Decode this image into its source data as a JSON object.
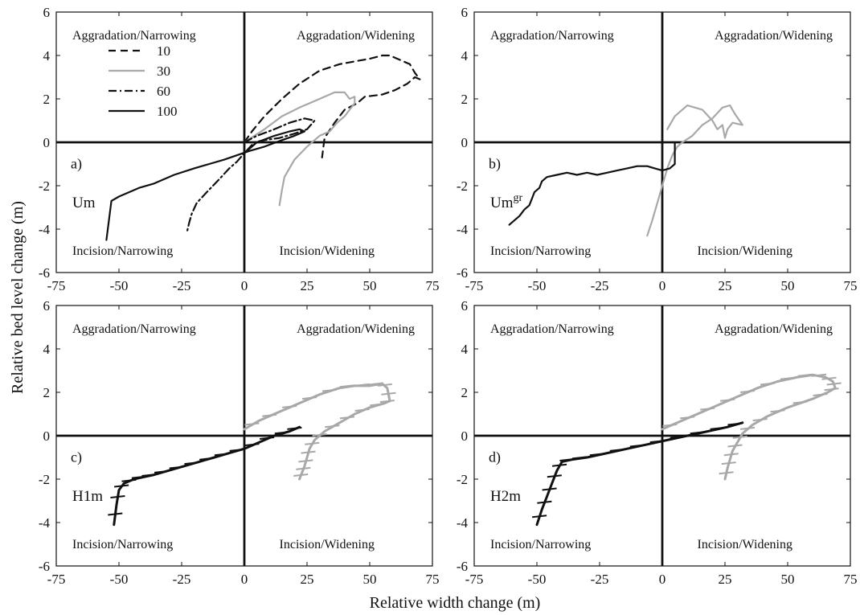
{
  "figure": {
    "xlabel": "Relative width change (m)",
    "ylabel": "Relative bed level change (m)"
  },
  "colors": {
    "black": "#111111",
    "gray": "#a8a8a8"
  },
  "chart_data": [
    {
      "type": "line",
      "panel_letter": "a)",
      "run_name": "Um",
      "run_superscript": "",
      "xlim": [
        -75,
        75
      ],
      "ylim": [
        -6,
        6
      ],
      "xticks": [
        "-75",
        "-50",
        "-25",
        "0",
        "25",
        "50",
        "75"
      ],
      "yticks": [
        "-6",
        "-4",
        "-2",
        "0",
        "2",
        "4",
        "6"
      ],
      "quadrant_labels": {
        "top_left": "Aggradation/Narrowing",
        "top_right": "Aggradation/Widening",
        "bottom_left": "Incision/Narrowing",
        "bottom_right": "Incision/Widening"
      },
      "legend": {
        "position": "upper-left",
        "entries": [
          {
            "label": "10",
            "style": "dashed",
            "color": "#111111"
          },
          {
            "label": "30",
            "style": "solid",
            "color": "#a8a8a8"
          },
          {
            "label": "60",
            "style": "dashdot",
            "color": "#111111"
          },
          {
            "label": "100",
            "style": "solid",
            "color": "#111111"
          }
        ]
      },
      "series": [
        {
          "name": "10",
          "style": "dashed",
          "color": "#111111",
          "x": [
            0,
            3,
            8,
            15,
            22,
            30,
            38,
            45,
            50,
            55,
            58,
            62,
            66,
            68,
            70,
            68,
            65,
            60,
            55,
            48,
            45,
            40,
            36,
            32,
            31
          ],
          "y": [
            0,
            0.5,
            1.2,
            2.0,
            2.7,
            3.3,
            3.6,
            3.75,
            3.85,
            4.0,
            4.0,
            3.8,
            3.6,
            3.2,
            2.9,
            3.0,
            2.7,
            2.4,
            2.2,
            2.1,
            1.8,
            1.5,
            0.9,
            0.2,
            -0.7
          ]
        },
        {
          "name": "30",
          "style": "solid",
          "color": "#a8a8a8",
          "x": [
            0,
            8,
            15,
            22,
            30,
            36,
            40,
            42,
            44,
            44,
            42,
            40,
            37,
            34,
            30,
            25,
            20,
            16,
            15,
            14
          ],
          "y": [
            0,
            0.6,
            1.2,
            1.6,
            2.0,
            2.3,
            2.3,
            2.0,
            2.1,
            1.8,
            1.5,
            1.2,
            0.9,
            0.5,
            0.3,
            -0.2,
            -0.8,
            -1.6,
            -2.2,
            -2.9
          ]
        },
        {
          "name": "60",
          "style": "dashdot",
          "color": "#111111",
          "x": [
            0,
            5,
            12,
            18,
            24,
            28,
            25,
            20,
            14,
            8,
            4,
            0,
            -3,
            -6,
            -10,
            -15,
            -19,
            -21,
            -22,
            -23
          ],
          "y": [
            0,
            0.3,
            0.6,
            0.9,
            1.1,
            1.0,
            0.6,
            0.4,
            0.2,
            0.1,
            0.0,
            -0.5,
            -0.9,
            -1.2,
            -1.7,
            -2.3,
            -2.8,
            -3.3,
            -3.7,
            -4.2
          ]
        },
        {
          "name": "100",
          "style": "solid",
          "color": "#111111",
          "x": [
            0,
            5,
            12,
            18,
            22,
            24,
            20,
            15,
            8,
            2,
            -3,
            -8,
            -14,
            -20,
            -28,
            -36,
            -42,
            -46,
            -50,
            -53,
            -55
          ],
          "y": [
            -0.5,
            0.0,
            0.3,
            0.5,
            0.6,
            0.5,
            0.3,
            0.1,
            -0.2,
            -0.4,
            -0.6,
            -0.8,
            -1.0,
            -1.2,
            -1.5,
            -1.9,
            -2.1,
            -2.3,
            -2.5,
            -2.7,
            -4.5
          ]
        }
      ]
    },
    {
      "type": "line",
      "panel_letter": "b)",
      "run_name": "Um",
      "run_superscript": "gr",
      "xlim": [
        -75,
        75
      ],
      "ylim": [
        -6,
        6
      ],
      "xticks": [
        "-75",
        "-50",
        "-25",
        "0",
        "25",
        "50",
        "75"
      ],
      "yticks": [
        "-6",
        "-4",
        "-2",
        "0",
        "2",
        "4",
        "6"
      ],
      "quadrant_labels": {
        "top_left": "Aggradation/Narrowing",
        "top_right": "Aggradation/Widening",
        "bottom_left": "Incision/Narrowing",
        "bottom_right": "Incision/Widening"
      },
      "series": [
        {
          "style": "solid",
          "color": "#a8a8a8",
          "x": [
            -6,
            -4,
            -2,
            0,
            2,
            4,
            6,
            8,
            12,
            16,
            20,
            24,
            27,
            29,
            32,
            28,
            26,
            25,
            24,
            22,
            20,
            16,
            10,
            5,
            2
          ],
          "y": [
            -4.3,
            -3.6,
            -2.8,
            -2.0,
            -1.2,
            -0.6,
            -0.2,
            0.0,
            0.3,
            0.8,
            1.1,
            1.6,
            1.7,
            1.3,
            0.8,
            0.9,
            0.6,
            0.2,
            0.8,
            0.6,
            1.0,
            1.5,
            1.7,
            1.2,
            0.6
          ]
        },
        {
          "style": "solid",
          "color": "#111111",
          "x": [
            5,
            5,
            3,
            0,
            -3,
            -6,
            -10,
            -14,
            -18,
            -22,
            -26,
            -30,
            -34,
            -38,
            -42,
            -46,
            -48,
            -49,
            -51,
            -52,
            -53,
            -55,
            -57,
            -59,
            -61
          ],
          "y": [
            0.0,
            -1.0,
            -1.2,
            -1.3,
            -1.2,
            -1.1,
            -1.1,
            -1.2,
            -1.3,
            -1.4,
            -1.5,
            -1.4,
            -1.5,
            -1.4,
            -1.5,
            -1.6,
            -1.8,
            -2.1,
            -2.3,
            -2.6,
            -2.9,
            -3.1,
            -3.4,
            -3.6,
            -3.8
          ]
        }
      ]
    },
    {
      "type": "line",
      "panel_letter": "c)",
      "run_name": "H1m",
      "run_superscript": "",
      "xlim": [
        -75,
        75
      ],
      "ylim": [
        -6,
        6
      ],
      "xticks": [
        "-75",
        "-50",
        "-25",
        "0",
        "25",
        "50",
        "75"
      ],
      "yticks": [
        "-6",
        "-4",
        "-2",
        "0",
        "2",
        "4",
        "6"
      ],
      "quadrant_labels": {
        "top_left": "Aggradation/Narrowing",
        "top_right": "Aggradation/Widening",
        "bottom_left": "Incision/Narrowing",
        "bottom_right": "Incision/Widening"
      },
      "series": [
        {
          "style": "hatched",
          "color": "#a8a8a8",
          "x": [
            0,
            6,
            14,
            22,
            30,
            38,
            44,
            50,
            55,
            57,
            58,
            56,
            50,
            44,
            38,
            32,
            28,
            26,
            25,
            24,
            23,
            22
          ],
          "y": [
            0.3,
            0.7,
            1.1,
            1.5,
            1.9,
            2.2,
            2.3,
            2.3,
            2.4,
            2.2,
            1.6,
            1.5,
            1.3,
            1.0,
            0.6,
            0.2,
            -0.2,
            -0.6,
            -1.0,
            -1.4,
            -1.7,
            -2.0
          ]
        },
        {
          "style": "hatched",
          "color": "#111111",
          "x": [
            22,
            18,
            12,
            6,
            0,
            -6,
            -12,
            -18,
            -24,
            -30,
            -36,
            -40,
            -44,
            -48,
            -50,
            -51,
            -52
          ],
          "y": [
            0.4,
            0.2,
            0.0,
            -0.3,
            -0.6,
            -0.8,
            -1.0,
            -1.2,
            -1.4,
            -1.6,
            -1.8,
            -1.9,
            -2.0,
            -2.2,
            -2.5,
            -3.2,
            -4.1
          ]
        }
      ]
    },
    {
      "type": "line",
      "panel_letter": "d)",
      "run_name": "H2m",
      "run_superscript": "",
      "xlim": [
        -75,
        75
      ],
      "ylim": [
        -6,
        6
      ],
      "xticks": [
        "-75",
        "-50",
        "-25",
        "0",
        "25",
        "50",
        "75"
      ],
      "yticks": [
        "-6",
        "-4",
        "-2",
        "0",
        "2",
        "4",
        "6"
      ],
      "quadrant_labels": {
        "top_left": "Aggradation/Narrowing",
        "top_right": "Aggradation/Widening",
        "bottom_left": "Incision/Narrowing",
        "bottom_right": "Incision/Widening"
      },
      "series": [
        {
          "style": "hatched",
          "color": "#a8a8a8",
          "x": [
            0,
            6,
            14,
            22,
            30,
            38,
            46,
            54,
            60,
            65,
            68,
            69,
            66,
            60,
            50,
            42,
            36,
            32,
            30,
            28,
            27,
            26,
            25
          ],
          "y": [
            0.3,
            0.6,
            1.0,
            1.4,
            1.8,
            2.2,
            2.5,
            2.7,
            2.8,
            2.7,
            2.5,
            2.2,
            2.0,
            1.7,
            1.3,
            0.9,
            0.5,
            0.1,
            -0.3,
            -0.7,
            -1.1,
            -1.5,
            -2.0
          ]
        },
        {
          "style": "hatched",
          "color": "#111111",
          "x": [
            32,
            26,
            18,
            10,
            2,
            -6,
            -14,
            -22,
            -30,
            -36,
            -40,
            -42,
            -44,
            -46,
            -48,
            -50
          ],
          "y": [
            0.6,
            0.4,
            0.2,
            0.0,
            -0.2,
            -0.4,
            -0.6,
            -0.8,
            -1.0,
            -1.1,
            -1.2,
            -1.6,
            -2.2,
            -2.8,
            -3.4,
            -4.1
          ]
        }
      ]
    }
  ]
}
